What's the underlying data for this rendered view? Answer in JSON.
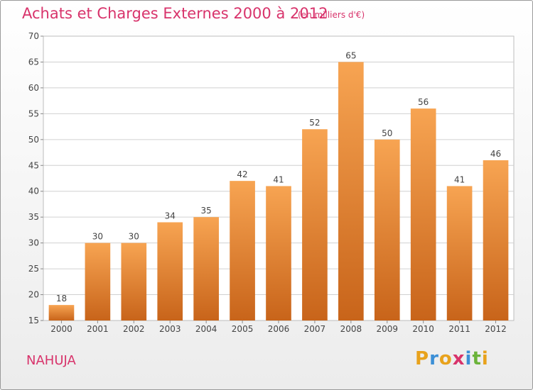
{
  "title": "Achats et Charges Externes 2000 à 2012",
  "subtitle": "(en milliers d'€)",
  "city": "NAHUJA",
  "logo": {
    "letters": [
      "P",
      "r",
      "o",
      "x",
      "i",
      "t",
      "i"
    ],
    "colors": [
      "#e8a21c",
      "#3c8fd6",
      "#e8a21c",
      "#d8336b",
      "#3c8fd6",
      "#6bb33a",
      "#e8a21c"
    ]
  },
  "colors": {
    "accent": "#d8336b",
    "bar_light": "#f7a452",
    "bar_dark": "#c8641a",
    "grid": "#d0d0d0"
  },
  "chart_data": {
    "type": "bar",
    "title": "Achats et Charges Externes 2000 à 2012",
    "subtitle": "(en milliers d'€)",
    "categories": [
      "2000",
      "2001",
      "2002",
      "2003",
      "2004",
      "2005",
      "2006",
      "2007",
      "2008",
      "2009",
      "2010",
      "2011",
      "2012"
    ],
    "values": [
      18,
      30,
      30,
      34,
      35,
      42,
      41,
      52,
      65,
      50,
      56,
      41,
      46
    ],
    "ylim": [
      15,
      70
    ],
    "yticks": [
      15,
      20,
      25,
      30,
      35,
      40,
      45,
      50,
      55,
      60,
      65,
      70
    ],
    "grid": "horizontal",
    "legend": "none"
  }
}
